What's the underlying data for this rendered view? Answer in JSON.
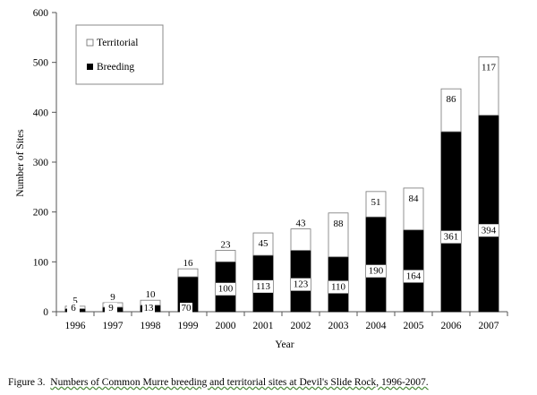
{
  "chart_data": {
    "type": "bar",
    "stacked": true,
    "categories": [
      "1996",
      "1997",
      "1998",
      "1999",
      "2000",
      "2001",
      "2002",
      "2003",
      "2004",
      "2005",
      "2006",
      "2007"
    ],
    "series": [
      {
        "name": "Breeding",
        "color": "#000000",
        "values": [
          6,
          9,
          13,
          70,
          100,
          113,
          123,
          110,
          190,
          164,
          361,
          394
        ]
      },
      {
        "name": "Territorial",
        "color": "#ffffff",
        "values": [
          5,
          9,
          10,
          16,
          23,
          45,
          43,
          88,
          51,
          84,
          86,
          117
        ]
      }
    ],
    "xlabel": "Year",
    "ylabel": "Number of Sites",
    "ylim": [
      0,
      600
    ],
    "yticks": [
      0,
      100,
      200,
      300,
      400,
      500,
      600
    ],
    "grid": false,
    "legend_position": "top-left"
  },
  "caption": {
    "prefix": "Figure 3.",
    "text": "Numbers of Common Murre breeding and territorial  sites at Devil's Slide Rock, 1996-2007."
  }
}
